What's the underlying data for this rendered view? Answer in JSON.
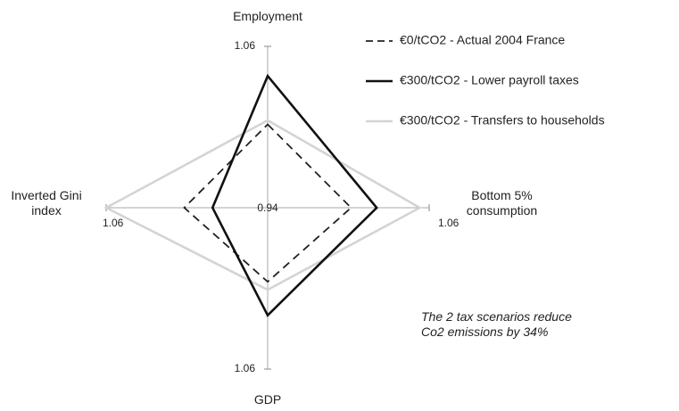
{
  "chart_data": {
    "type": "radar",
    "categories": [
      "Employment",
      "Bottom 5% consumption",
      "GDP",
      "Inverted Gini index"
    ],
    "rlim": [
      0.94,
      1.06
    ],
    "rticks": [
      0.94,
      1.06
    ],
    "legend": "upper right",
    "series": [
      {
        "name": "€0/tCO2 - Actual 2004 France",
        "color": "#222222",
        "dash": true,
        "values": [
          1.002,
          1.002,
          0.995,
          1.002
        ]
      },
      {
        "name": "€300/tCO2 - Lower payroll taxes",
        "color": "#111111",
        "dash": false,
        "values": [
          1.038,
          1.021,
          1.02,
          0.981
        ]
      },
      {
        "name": "€300/tCO2 - Transfers to households",
        "color": "#d4d4d4",
        "dash": false,
        "values": [
          1.005,
          1.053,
          1.001,
          1.06
        ]
      }
    ],
    "annotation": "The 2 tax scenarios reduce Co2 emissions by 34%"
  }
}
